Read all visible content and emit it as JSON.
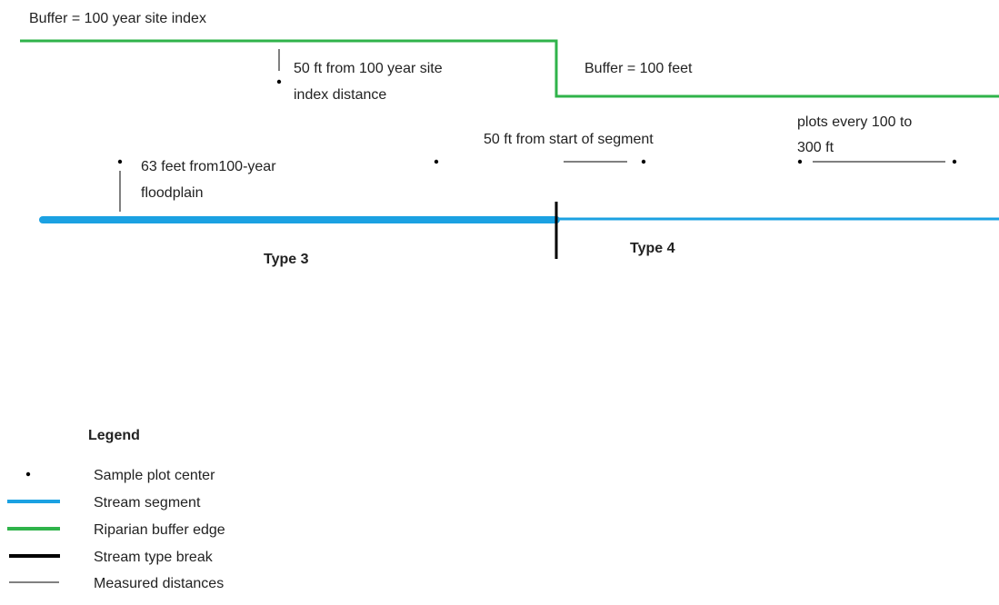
{
  "labels": {
    "buffer_site_index": "Buffer = 100 year site index",
    "site_index_distance": [
      "50 ft from 100 year site",
      "index distance"
    ],
    "buffer_100_feet": "Buffer = 100 feet",
    "plots_every": [
      "plots every 100 to",
      "300 ft"
    ],
    "start_of_segment": "50 ft from start of segment",
    "floodplain": [
      "63 feet from100-year",
      "floodplain"
    ],
    "type_3": "Type 3",
    "type_4": "Type 4"
  },
  "legend": {
    "title": "Legend",
    "items": [
      "Sample plot center",
      "Stream segment",
      "Riparian buffer edge",
      "Stream type break",
      "Measured distances"
    ]
  }
}
